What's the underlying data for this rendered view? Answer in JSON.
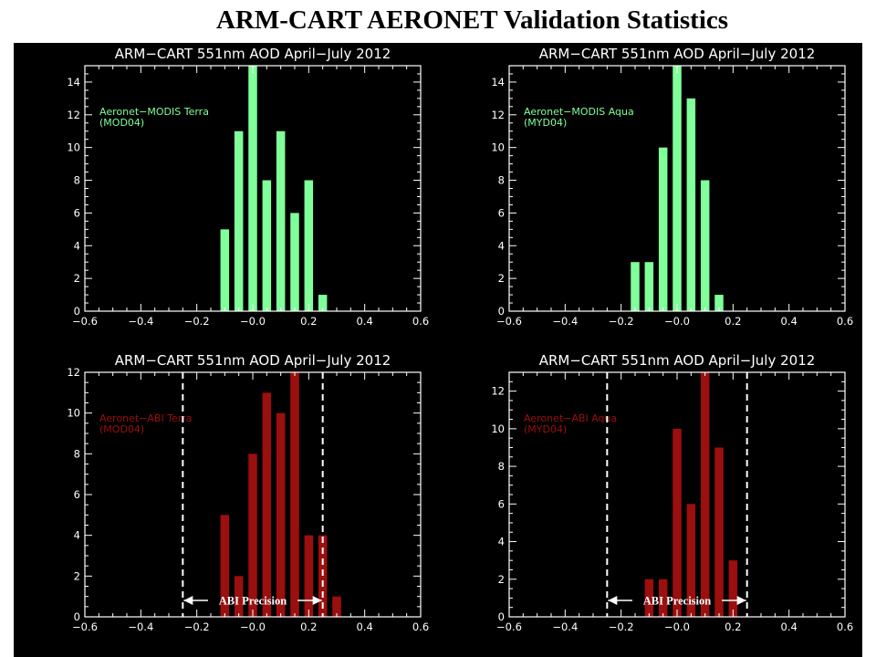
{
  "page": {
    "title": "ARM-CART AERONET Validation Statistics"
  },
  "colors": {
    "background": "#000000",
    "frame": "#ffffff",
    "modis_bars": "#80ff9a",
    "abi_bars": "#9b0f0f"
  },
  "chart_data": [
    {
      "type": "bar",
      "title": "ARM−CART 551nm AOD April−July 2012",
      "legend": [
        "Aeronet−MODIS Terra",
        "(MOD04)"
      ],
      "legend_placement": "top-left",
      "color": "#80ff9a",
      "xlim": [
        -0.6,
        0.6
      ],
      "ylim": [
        0,
        15
      ],
      "xticks": [
        "−0.6",
        "−0.4",
        "−0.2",
        "−0.0",
        "0.2",
        "0.4",
        "0.6"
      ],
      "yticks": [
        "0",
        "2",
        "4",
        "6",
        "8",
        "10",
        "12",
        "14"
      ],
      "bin_width": 0.05,
      "x": [
        -0.1,
        -0.05,
        0.0,
        0.05,
        0.1,
        0.15,
        0.2,
        0.25
      ],
      "values": [
        5,
        11,
        15,
        8,
        11,
        6,
        8,
        1
      ]
    },
    {
      "type": "bar",
      "title": "ARM−CART 551nm AOD April−July 2012",
      "legend": [
        "Aeronet−MODIS Aqua",
        "(MYD04)"
      ],
      "legend_placement": "top-left",
      "color": "#80ff9a",
      "xlim": [
        -0.6,
        0.6
      ],
      "ylim": [
        0,
        15
      ],
      "xticks": [
        "−0.6",
        "−0.4",
        "−0.2",
        "−0.0",
        "0.2",
        "0.4",
        "0.6"
      ],
      "yticks": [
        "0",
        "2",
        "4",
        "6",
        "8",
        "10",
        "12",
        "14"
      ],
      "bin_width": 0.05,
      "x": [
        -0.15,
        -0.1,
        -0.05,
        0.0,
        0.05,
        0.1,
        0.15
      ],
      "values": [
        3,
        3,
        10,
        15,
        13,
        8,
        1
      ]
    },
    {
      "type": "bar",
      "title": "ARM−CART 551nm AOD April−July 2012",
      "legend": [
        "Aeronet−ABI Terra",
        "(MOD04)"
      ],
      "legend_placement": "top-left",
      "color": "#9b0f0f",
      "xlim": [
        -0.6,
        0.6
      ],
      "ylim": [
        0,
        12
      ],
      "xticks": [
        "−0.6",
        "−0.4",
        "−0.2",
        "−0.0",
        "0.2",
        "0.4",
        "0.6"
      ],
      "yticks": [
        "0",
        "2",
        "4",
        "6",
        "8",
        "10",
        "12"
      ],
      "bin_width": 0.05,
      "x": [
        -0.1,
        -0.05,
        0.0,
        0.05,
        0.1,
        0.15,
        0.2,
        0.25,
        0.3
      ],
      "values": [
        5,
        2,
        8,
        11,
        10,
        12,
        4,
        4,
        1
      ],
      "precision_lines": [
        -0.25,
        0.25
      ],
      "precision_label": "ABI Precision"
    },
    {
      "type": "bar",
      "title": "ARM−CART 551nm AOD April−July 2012",
      "legend": [
        "Aeronet−ABI Aqua",
        "(MYD04)"
      ],
      "legend_placement": "top-left",
      "color": "#9b0f0f",
      "xlim": [
        -0.6,
        0.6
      ],
      "ylim": [
        0,
        13
      ],
      "xticks": [
        "−0.6",
        "−0.4",
        "−0.2",
        "−0.0",
        "0.2",
        "0.4",
        "0.6"
      ],
      "yticks": [
        "0",
        "2",
        "4",
        "6",
        "8",
        "10",
        "12"
      ],
      "bin_width": 0.05,
      "x": [
        -0.1,
        -0.05,
        0.0,
        0.05,
        0.1,
        0.15,
        0.2
      ],
      "values": [
        2,
        2,
        10,
        6,
        13,
        9,
        3
      ],
      "precision_lines": [
        -0.25,
        0.25
      ],
      "precision_label": "ABI Precision"
    }
  ]
}
